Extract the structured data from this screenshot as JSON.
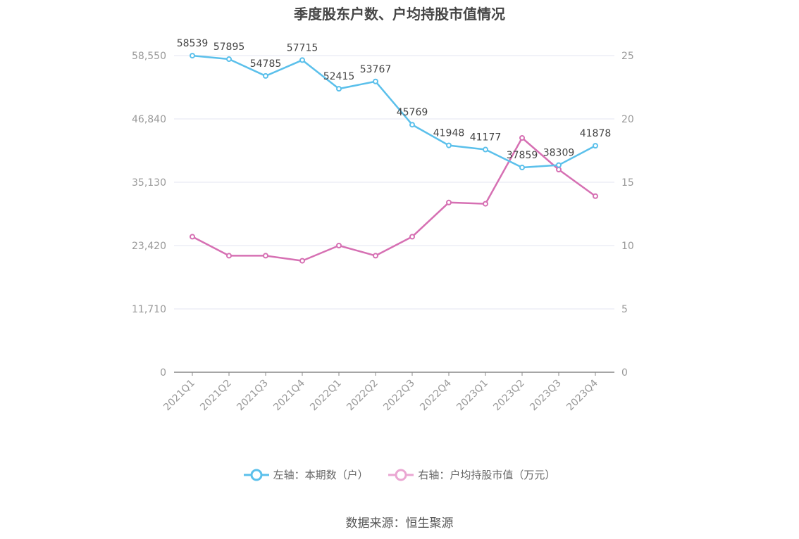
{
  "chart_data": {
    "type": "line",
    "title": "季度股东户数、户均持股市值情况",
    "categories": [
      "2021Q1",
      "2021Q2",
      "2021Q3",
      "2021Q4",
      "2022Q1",
      "2022Q2",
      "2022Q3",
      "2022Q4",
      "2023Q1",
      "2023Q2",
      "2023Q3",
      "2023Q4"
    ],
    "left_axis": {
      "ticks": [
        "0",
        "11,710",
        "23,420",
        "35,130",
        "46,840",
        "58,550"
      ],
      "ylim": [
        0,
        58550
      ]
    },
    "right_axis": {
      "ticks": [
        "0",
        "5",
        "10",
        "15",
        "20",
        "25"
      ],
      "ylim": [
        0,
        25
      ]
    },
    "grid": true,
    "legend_position": "bottom",
    "series": [
      {
        "name": "左轴：本期数（户）",
        "axis": "left",
        "color": "#5bc0eb",
        "values": [
          58539,
          57895,
          54785,
          57715,
          52415,
          53767,
          45769,
          41948,
          41177,
          37859,
          38309,
          41878
        ],
        "labels": [
          "58539",
          "57895",
          "54785",
          "57715",
          "52415",
          "53767",
          "45769",
          "41948",
          "41177",
          "37859",
          "38309",
          "41878"
        ]
      },
      {
        "name": "右轴：户均持股市值（万元）",
        "axis": "right",
        "color": "#d670b3",
        "values": [
          10.7,
          9.2,
          9.2,
          8.8,
          10.0,
          9.2,
          10.7,
          13.4,
          13.3,
          18.5,
          16.0,
          13.9
        ]
      }
    ]
  },
  "source_text": "数据来源：恒生聚源"
}
